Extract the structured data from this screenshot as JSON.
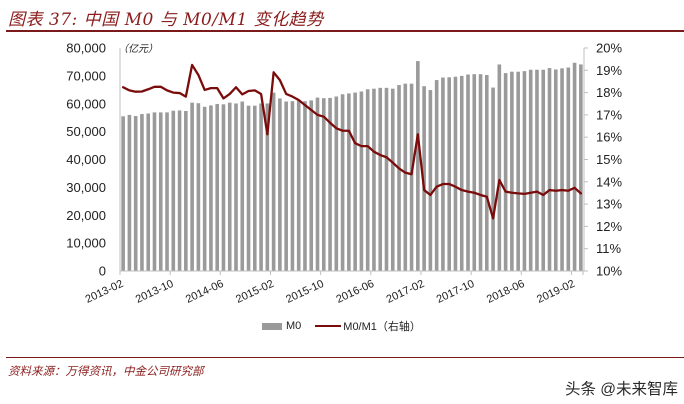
{
  "header": {
    "title": "图表 37: 中国 M0 与 M0/M1 变化趋势"
  },
  "colors": {
    "title": "#8b1d1d",
    "bar": "#9a9a9a",
    "line": "#7b0c0c",
    "axis": "#bfbfbf",
    "text": "#222222"
  },
  "chart_data": {
    "type": "bar",
    "title": "中国 M0 与 M0/M1 变化趋势",
    "xlabel": "",
    "ylabel": "（亿元）",
    "ylabel_right": "",
    "unit_label": "（亿元）",
    "grid": false,
    "legend_position": "bottom",
    "y_left": {
      "min": 0,
      "max": 80000,
      "ticks": [
        {
          "value": 0,
          "label": "0"
        },
        {
          "value": 10000,
          "label": "10,000"
        },
        {
          "value": 20000,
          "label": "20,000"
        },
        {
          "value": 30000,
          "label": "30,000"
        },
        {
          "value": 40000,
          "label": "40,000"
        },
        {
          "value": 50000,
          "label": "50,000"
        },
        {
          "value": 60000,
          "label": "60,000"
        },
        {
          "value": 70000,
          "label": "70,000"
        },
        {
          "value": 80000,
          "label": "80,000"
        }
      ]
    },
    "y_right": {
      "min": 10,
      "max": 20,
      "ticks": [
        {
          "value": 10,
          "label": "10%"
        },
        {
          "value": 11,
          "label": "11%"
        },
        {
          "value": 12,
          "label": "12%"
        },
        {
          "value": 13,
          "label": "13%"
        },
        {
          "value": 14,
          "label": "14%"
        },
        {
          "value": 15,
          "label": "15%"
        },
        {
          "value": 16,
          "label": "16%"
        },
        {
          "value": 17,
          "label": "17%"
        },
        {
          "value": 18,
          "label": "18%"
        },
        {
          "value": 19,
          "label": "19%"
        },
        {
          "value": 20,
          "label": "20%"
        }
      ]
    },
    "x_tick_labels": [
      {
        "index": 0,
        "label": "2013-02"
      },
      {
        "index": 8,
        "label": "2013-10"
      },
      {
        "index": 16,
        "label": "2014-06"
      },
      {
        "index": 24,
        "label": "2015-02"
      },
      {
        "index": 32,
        "label": "2015-10"
      },
      {
        "index": 40,
        "label": "2016-06"
      },
      {
        "index": 48,
        "label": "2017-02"
      },
      {
        "index": 56,
        "label": "2017-10"
      },
      {
        "index": 64,
        "label": "2018-06"
      },
      {
        "index": 72,
        "label": "2019-02"
      }
    ],
    "categories": [
      "2013-02",
      "2013-03",
      "2013-04",
      "2013-05",
      "2013-06",
      "2013-07",
      "2013-08",
      "2013-09",
      "2013-10",
      "2013-11",
      "2013-12",
      "2014-01",
      "2014-02",
      "2014-03",
      "2014-04",
      "2014-05",
      "2014-06",
      "2014-07",
      "2014-08",
      "2014-09",
      "2014-10",
      "2014-11",
      "2014-12",
      "2015-01",
      "2015-02",
      "2015-03",
      "2015-04",
      "2015-05",
      "2015-06",
      "2015-07",
      "2015-08",
      "2015-09",
      "2015-10",
      "2015-11",
      "2015-12",
      "2016-01",
      "2016-02",
      "2016-03",
      "2016-04",
      "2016-05",
      "2016-06",
      "2016-07",
      "2016-08",
      "2016-09",
      "2016-10",
      "2016-11",
      "2016-12",
      "2017-01",
      "2017-02",
      "2017-03",
      "2017-04",
      "2017-05",
      "2017-06",
      "2017-07",
      "2017-08",
      "2017-09",
      "2017-10",
      "2017-11",
      "2017-12",
      "2018-01",
      "2018-02",
      "2018-03",
      "2018-04",
      "2018-05",
      "2018-06",
      "2018-07",
      "2018-08",
      "2018-09",
      "2018-10",
      "2018-11",
      "2018-12",
      "2019-01",
      "2019-02",
      "2019-03"
    ],
    "series": [
      {
        "name": "M0",
        "type": "bar",
        "axis": "left",
        "values": [
          55500,
          56000,
          55600,
          56300,
          56500,
          56900,
          56900,
          56900,
          57500,
          57600,
          57400,
          60400,
          60200,
          58900,
          59400,
          59900,
          59800,
          60400,
          60100,
          60800,
          59300,
          59300,
          60100,
          60100,
          64000,
          61900,
          60800,
          60900,
          61200,
          60900,
          61200,
          62200,
          62000,
          62100,
          62600,
          63400,
          63700,
          64000,
          64400,
          65200,
          65400,
          65700,
          65700,
          65400,
          66700,
          67200,
          67200,
          75300,
          66300,
          64900,
          68500,
          69400,
          69500,
          69700,
          70000,
          70500,
          70600,
          70600,
          70300,
          65800,
          74100,
          71000,
          71500,
          71500,
          71700,
          72200,
          72200,
          72200,
          72800,
          72300,
          72700,
          73000,
          74700,
          74100
        ]
      },
      {
        "name": "M0/M1（右轴）",
        "type": "line",
        "axis": "right",
        "unit": "%",
        "values": [
          18.24,
          18.1,
          18.04,
          18.05,
          18.15,
          18.26,
          18.26,
          18.1,
          18.0,
          17.98,
          17.82,
          19.24,
          18.79,
          18.12,
          18.2,
          18.2,
          17.74,
          17.94,
          18.24,
          17.92,
          18.07,
          18.1,
          17.94,
          16.13,
          18.91,
          18.56,
          17.94,
          17.82,
          17.67,
          17.44,
          17.22,
          17.0,
          16.92,
          16.65,
          16.4,
          16.29,
          16.29,
          15.73,
          15.6,
          15.6,
          15.35,
          15.2,
          15.1,
          14.86,
          14.6,
          14.41,
          14.34,
          16.13,
          13.63,
          13.41,
          13.78,
          13.9,
          13.9,
          13.78,
          13.63,
          13.56,
          13.51,
          13.41,
          13.33,
          12.36,
          14.08,
          13.56,
          13.51,
          13.48,
          13.46,
          13.51,
          13.56,
          13.41,
          13.63,
          13.6,
          13.63,
          13.6,
          13.73,
          13.48
        ]
      }
    ]
  },
  "legend": {
    "items": [
      {
        "label": "M0",
        "icon": "bar-swatch"
      },
      {
        "label": "M0/M1（右轴）",
        "icon": "line-swatch"
      }
    ]
  },
  "footer": {
    "source": "资料来源：万得资讯，中金公司研究部",
    "watermark": "头条 @未来智库"
  }
}
